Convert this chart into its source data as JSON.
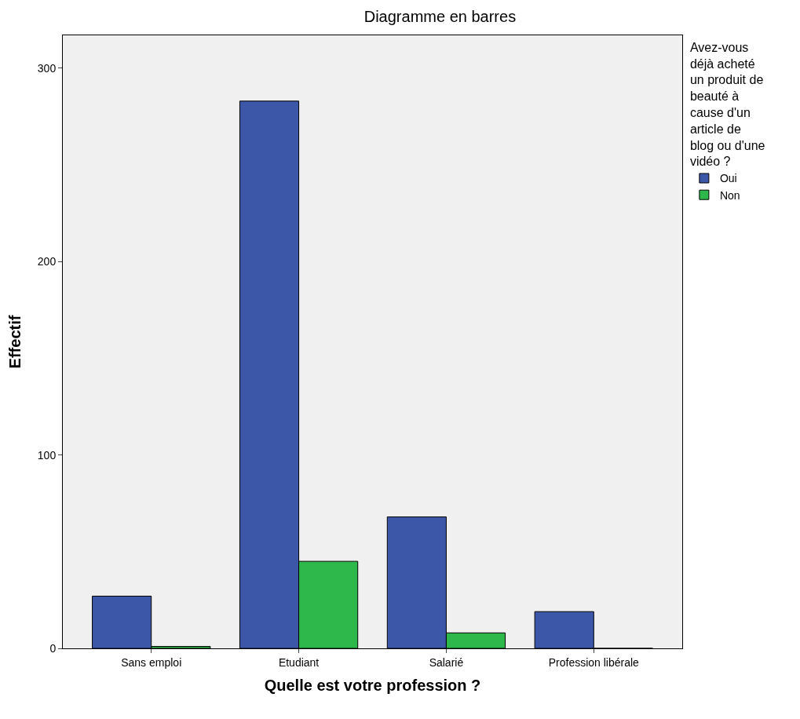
{
  "chart_data": {
    "type": "bar",
    "title": "Diagramme en barres",
    "xlabel": "Quelle est votre profession ?",
    "ylabel": "Effectif",
    "legend_title": "Avez-vous déjà acheté un produit de beauté à cause d'un article de blog ou d'une vidéo ?",
    "categories": [
      "Sans emploi",
      "Etudiant",
      "Salarié",
      "Profession libérale"
    ],
    "series": [
      {
        "name": "Oui",
        "color": "#3c56a8",
        "values": [
          27,
          283,
          68,
          19
        ]
      },
      {
        "name": "Non",
        "color": "#2eb84b",
        "values": [
          1,
          45,
          8,
          0
        ]
      }
    ],
    "ylim": [
      0,
      317
    ],
    "yticks": [
      0,
      100,
      200,
      300
    ],
    "grid": false,
    "legend": "right"
  }
}
